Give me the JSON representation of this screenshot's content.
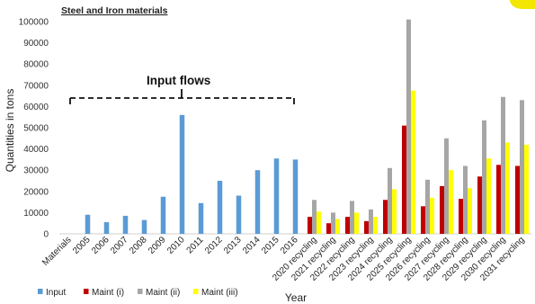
{
  "chart_data": {
    "type": "bar",
    "title": "Steel and Iron materials",
    "xlabel": "Year",
    "ylabel": "Quantities in tons",
    "ylim": [
      0,
      100000
    ],
    "yticks": [
      0,
      10000,
      20000,
      30000,
      40000,
      50000,
      60000,
      70000,
      80000,
      90000,
      100000
    ],
    "grid": false,
    "legend_position": "bottom-left",
    "annotation": "Input flows",
    "categories": [
      "Materials",
      "2005",
      "2006",
      "2007",
      "2008",
      "2009",
      "2010",
      "2011",
      "2012",
      "2013",
      "2014",
      "2015",
      "2016",
      "2020 recycling",
      "2021 recycling",
      "2022 recycling",
      "2023 recycling",
      "2024 recycling",
      "2025 recycling",
      "2026 recycling",
      "2027 recycling",
      "2028 recycling",
      "2029 recycling",
      "2030 recycling",
      "2031 recycling"
    ],
    "series": [
      {
        "name": "Input",
        "color": "#5b9bd5",
        "values": [
          null,
          9000,
          5500,
          8500,
          6500,
          17500,
          56000,
          14500,
          25000,
          18000,
          30000,
          35500,
          35000,
          null,
          null,
          null,
          null,
          null,
          null,
          null,
          null,
          null,
          null,
          null,
          null
        ]
      },
      {
        "name": "Maint (i)",
        "color": "#c00000",
        "values": [
          null,
          null,
          null,
          null,
          null,
          null,
          null,
          null,
          null,
          null,
          null,
          null,
          null,
          8000,
          5000,
          8000,
          6000,
          16000,
          51000,
          13000,
          22500,
          16500,
          27000,
          32500,
          32000
        ]
      },
      {
        "name": "Maint (ii)",
        "color": "#a6a6a6",
        "values": [
          null,
          null,
          null,
          null,
          null,
          null,
          null,
          null,
          null,
          null,
          null,
          null,
          null,
          16000,
          10000,
          15500,
          11500,
          31000,
          101000,
          25500,
          45000,
          32000,
          53500,
          64500,
          63000
        ]
      },
      {
        "name": "Maint (iii)",
        "color": "#ffff00",
        "values": [
          null,
          null,
          null,
          null,
          null,
          null,
          null,
          null,
          null,
          null,
          null,
          null,
          null,
          10500,
          7000,
          10000,
          8000,
          21000,
          67500,
          17000,
          30000,
          21500,
          35500,
          43000,
          42000
        ]
      }
    ]
  }
}
